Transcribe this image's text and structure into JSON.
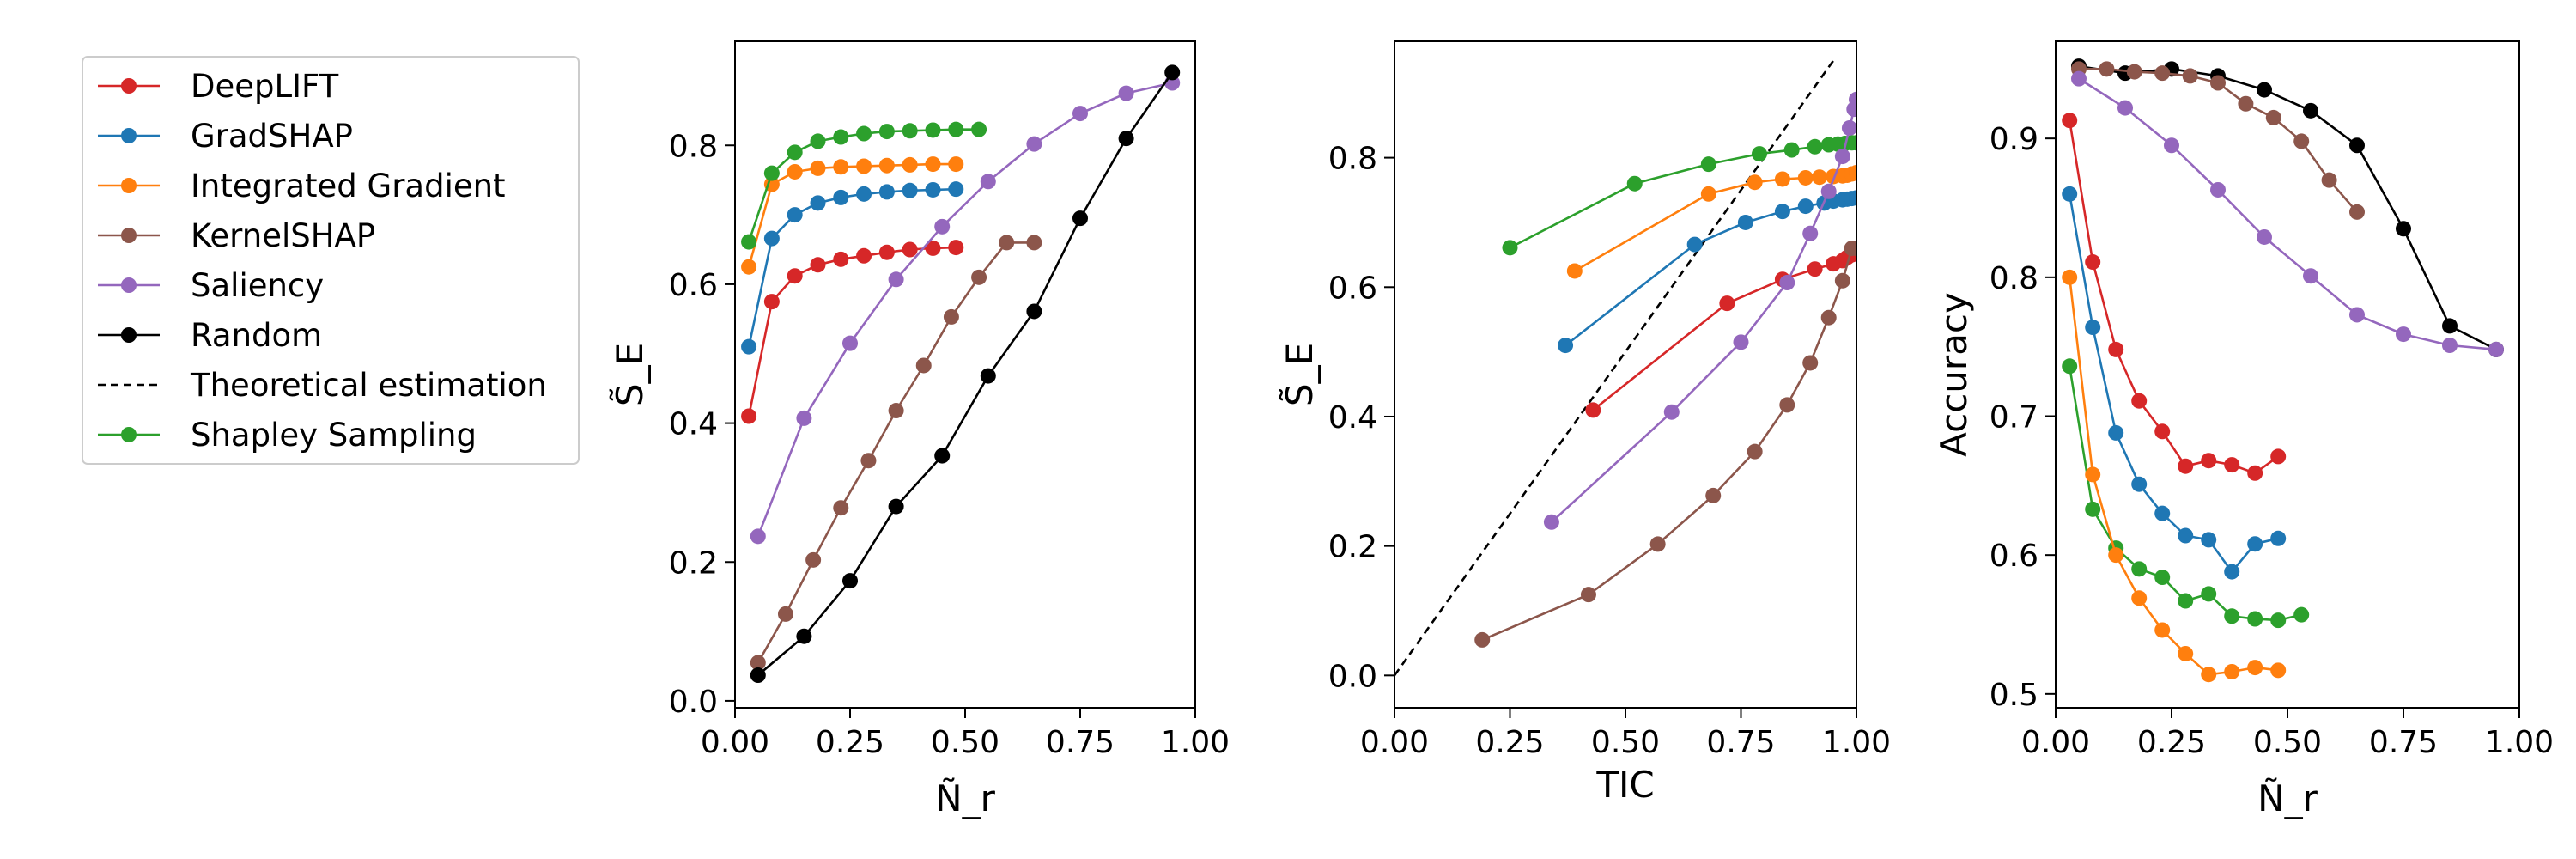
{
  "legend": [
    {
      "name": "DeepLIFT",
      "color": "#d62728",
      "style": "solid-marker"
    },
    {
      "name": "GradSHAP",
      "color": "#1f77b4",
      "style": "solid-marker"
    },
    {
      "name": "Integrated Gradient",
      "color": "#ff7f0e",
      "style": "solid-marker"
    },
    {
      "name": "KernelSHAP",
      "color": "#8c564b",
      "style": "solid-marker"
    },
    {
      "name": "Saliency",
      "color": "#9467bd",
      "style": "solid-marker"
    },
    {
      "name": "Random",
      "color": "#000000",
      "style": "solid-marker"
    },
    {
      "name": "Theoretical estimation",
      "color": "#000000",
      "style": "dashed"
    },
    {
      "name": "Shapley Sampling",
      "color": "#2ca02c",
      "style": "solid-marker"
    }
  ],
  "chart_data": [
    {
      "type": "line",
      "xlabel": "Ñ_r",
      "ylabel": "S̃_E",
      "xlim": [
        0,
        1
      ],
      "ylim": [
        -0.01,
        0.95
      ],
      "xticks": [
        "0.00",
        "0.25",
        "0.50",
        "0.75",
        "1.00"
      ],
      "yticks": [
        "0.0",
        "0.2",
        "0.4",
        "0.6",
        "0.8"
      ],
      "series": [
        {
          "name": "DeepLIFT",
          "color": "#d62728",
          "x": [
            0.03,
            0.08,
            0.13,
            0.18,
            0.23,
            0.28,
            0.33,
            0.38,
            0.43,
            0.48
          ],
          "y": [
            0.41,
            0.575,
            0.612,
            0.628,
            0.636,
            0.641,
            0.646,
            0.65,
            0.652,
            0.653
          ]
        },
        {
          "name": "GradSHAP",
          "color": "#1f77b4",
          "x": [
            0.03,
            0.08,
            0.13,
            0.18,
            0.23,
            0.28,
            0.33,
            0.38,
            0.43,
            0.48
          ],
          "y": [
            0.51,
            0.666,
            0.7,
            0.717,
            0.725,
            0.73,
            0.733,
            0.735,
            0.736,
            0.737
          ]
        },
        {
          "name": "Integrated Gradient",
          "color": "#ff7f0e",
          "x": [
            0.03,
            0.08,
            0.13,
            0.18,
            0.23,
            0.28,
            0.33,
            0.38,
            0.43,
            0.48
          ],
          "y": [
            0.625,
            0.744,
            0.762,
            0.767,
            0.769,
            0.77,
            0.771,
            0.772,
            0.773,
            0.773
          ]
        },
        {
          "name": "KernelSHAP",
          "color": "#8c564b",
          "x": [
            0.05,
            0.11,
            0.17,
            0.23,
            0.29,
            0.35,
            0.41,
            0.47,
            0.53,
            0.59,
            0.65
          ],
          "y": [
            0.055,
            0.125,
            0.203,
            0.278,
            0.346,
            0.418,
            0.483,
            0.553,
            0.61,
            0.66,
            0.66
          ]
        },
        {
          "name": "Saliency",
          "color": "#9467bd",
          "x": [
            0.05,
            0.15,
            0.25,
            0.35,
            0.45,
            0.55,
            0.65,
            0.75,
            0.85,
            0.95
          ],
          "y": [
            0.237,
            0.407,
            0.515,
            0.607,
            0.683,
            0.748,
            0.802,
            0.846,
            0.875,
            0.89
          ]
        },
        {
          "name": "Random",
          "color": "#000000",
          "x": [
            0.05,
            0.15,
            0.25,
            0.35,
            0.45,
            0.55,
            0.65,
            0.75,
            0.85,
            0.95
          ],
          "y": [
            0.037,
            0.093,
            0.173,
            0.28,
            0.353,
            0.468,
            0.561,
            0.695,
            0.81,
            0.905
          ]
        },
        {
          "name": "Shapley Sampling",
          "color": "#2ca02c",
          "x": [
            0.03,
            0.08,
            0.13,
            0.18,
            0.23,
            0.28,
            0.33,
            0.38,
            0.43,
            0.48,
            0.53
          ],
          "y": [
            0.661,
            0.76,
            0.79,
            0.806,
            0.812,
            0.817,
            0.82,
            0.821,
            0.822,
            0.823,
            0.823
          ]
        }
      ]
    },
    {
      "type": "line",
      "xlabel": "TIC",
      "ylabel": "S̃_E",
      "xlim": [
        0,
        1
      ],
      "ylim": [
        -0.05,
        0.98
      ],
      "xticks": [
        "0.00",
        "0.25",
        "0.50",
        "0.75",
        "1.00"
      ],
      "yticks": [
        "0.0",
        "0.2",
        "0.4",
        "0.6",
        "0.8"
      ],
      "series": [
        {
          "name": "Theoretical estimation",
          "color": "#000000",
          "dashed": true,
          "markers": false,
          "x": [
            0.0,
            0.95
          ],
          "y": [
            0.0,
            0.95
          ]
        },
        {
          "name": "Shapley Sampling",
          "color": "#2ca02c",
          "x": [
            0.25,
            0.52,
            0.68,
            0.79,
            0.86,
            0.91,
            0.94,
            0.96,
            0.975,
            0.99,
            1.0
          ],
          "y": [
            0.661,
            0.76,
            0.79,
            0.806,
            0.812,
            0.817,
            0.82,
            0.821,
            0.822,
            0.823,
            0.823
          ]
        },
        {
          "name": "Integrated Gradient",
          "color": "#ff7f0e",
          "x": [
            0.39,
            0.68,
            0.78,
            0.84,
            0.89,
            0.92,
            0.95,
            0.97,
            0.98,
            0.99,
            1.0
          ],
          "y": [
            0.625,
            0.744,
            0.762,
            0.767,
            0.769,
            0.77,
            0.771,
            0.772,
            0.773,
            0.775,
            0.777
          ]
        },
        {
          "name": "GradSHAP",
          "color": "#1f77b4",
          "x": [
            0.37,
            0.65,
            0.76,
            0.84,
            0.89,
            0.93,
            0.95,
            0.97,
            0.98,
            0.99,
            1.0
          ],
          "y": [
            0.51,
            0.666,
            0.7,
            0.717,
            0.725,
            0.73,
            0.733,
            0.735,
            0.736,
            0.737,
            0.738
          ]
        },
        {
          "name": "DeepLIFT",
          "color": "#d62728",
          "x": [
            0.43,
            0.72,
            0.84,
            0.91,
            0.95,
            0.97,
            0.98,
            0.99,
            1.0
          ],
          "y": [
            0.41,
            0.575,
            0.612,
            0.628,
            0.636,
            0.641,
            0.646,
            0.65,
            0.653
          ]
        },
        {
          "name": "Saliency",
          "color": "#9467bd",
          "x": [
            0.34,
            0.6,
            0.75,
            0.85,
            0.9,
            0.94,
            0.97,
            0.985,
            0.995,
            1.0
          ],
          "y": [
            0.237,
            0.407,
            0.515,
            0.607,
            0.683,
            0.748,
            0.802,
            0.846,
            0.875,
            0.89
          ]
        },
        {
          "name": "KernelSHAP",
          "color": "#8c564b",
          "x": [
            0.19,
            0.42,
            0.57,
            0.69,
            0.78,
            0.85,
            0.9,
            0.94,
            0.97,
            0.99,
            1.0
          ],
          "y": [
            0.055,
            0.125,
            0.203,
            0.278,
            0.346,
            0.418,
            0.483,
            0.553,
            0.61,
            0.66,
            0.66
          ]
        }
      ]
    },
    {
      "type": "line",
      "xlabel": "Ñ_r",
      "ylabel": "Accuracy",
      "xlim": [
        0,
        1
      ],
      "ylim": [
        0.49,
        0.97
      ],
      "xticks": [
        "0.00",
        "0.25",
        "0.50",
        "0.75",
        "1.00"
      ],
      "yticks": [
        "0.5",
        "0.6",
        "0.7",
        "0.8",
        "0.9"
      ],
      "series": [
        {
          "name": "Random",
          "color": "#000000",
          "x": [
            0.05,
            0.15,
            0.25,
            0.35,
            0.45,
            0.55,
            0.65,
            0.75,
            0.85,
            0.95
          ],
          "y": [
            0.952,
            0.947,
            0.95,
            0.945,
            0.935,
            0.92,
            0.895,
            0.835,
            0.765,
            0.748
          ]
        },
        {
          "name": "KernelSHAP",
          "color": "#8c564b",
          "x": [
            0.05,
            0.11,
            0.17,
            0.23,
            0.29,
            0.35,
            0.41,
            0.47,
            0.53,
            0.59,
            0.65
          ],
          "y": [
            0.95,
            0.95,
            0.948,
            0.947,
            0.945,
            0.94,
            0.925,
            0.915,
            0.898,
            0.87,
            0.847
          ]
        },
        {
          "name": "Saliency",
          "color": "#9467bd",
          "x": [
            0.05,
            0.15,
            0.25,
            0.35,
            0.45,
            0.55,
            0.65,
            0.75,
            0.85,
            0.95
          ],
          "y": [
            0.943,
            0.922,
            0.895,
            0.863,
            0.829,
            0.801,
            0.773,
            0.759,
            0.751,
            0.748
          ]
        },
        {
          "name": "DeepLIFT",
          "color": "#d62728",
          "x": [
            0.03,
            0.08,
            0.13,
            0.18,
            0.23,
            0.28,
            0.33,
            0.38,
            0.43,
            0.48
          ],
          "y": [
            0.913,
            0.811,
            0.748,
            0.711,
            0.689,
            0.664,
            0.668,
            0.665,
            0.659,
            0.671
          ]
        },
        {
          "name": "GradSHAP",
          "color": "#1f77b4",
          "x": [
            0.03,
            0.08,
            0.13,
            0.18,
            0.23,
            0.28,
            0.33,
            0.38,
            0.43,
            0.48
          ],
          "y": [
            0.86,
            0.764,
            0.688,
            0.651,
            0.63,
            0.614,
            0.611,
            0.588,
            0.608,
            0.612
          ]
        },
        {
          "name": "Shapley Sampling",
          "color": "#2ca02c",
          "x": [
            0.03,
            0.08,
            0.13,
            0.18,
            0.23,
            0.28,
            0.33,
            0.38,
            0.43,
            0.48,
            0.53
          ],
          "y": [
            0.736,
            0.633,
            0.605,
            0.59,
            0.584,
            0.567,
            0.572,
            0.556,
            0.554,
            0.553,
            0.557
          ]
        },
        {
          "name": "Integrated Gradient",
          "color": "#ff7f0e",
          "x": [
            0.03,
            0.08,
            0.13,
            0.18,
            0.23,
            0.28,
            0.33,
            0.38,
            0.43,
            0.48
          ],
          "y": [
            0.8,
            0.658,
            0.6,
            0.569,
            0.546,
            0.529,
            0.514,
            0.516,
            0.519,
            0.517
          ]
        }
      ]
    }
  ]
}
